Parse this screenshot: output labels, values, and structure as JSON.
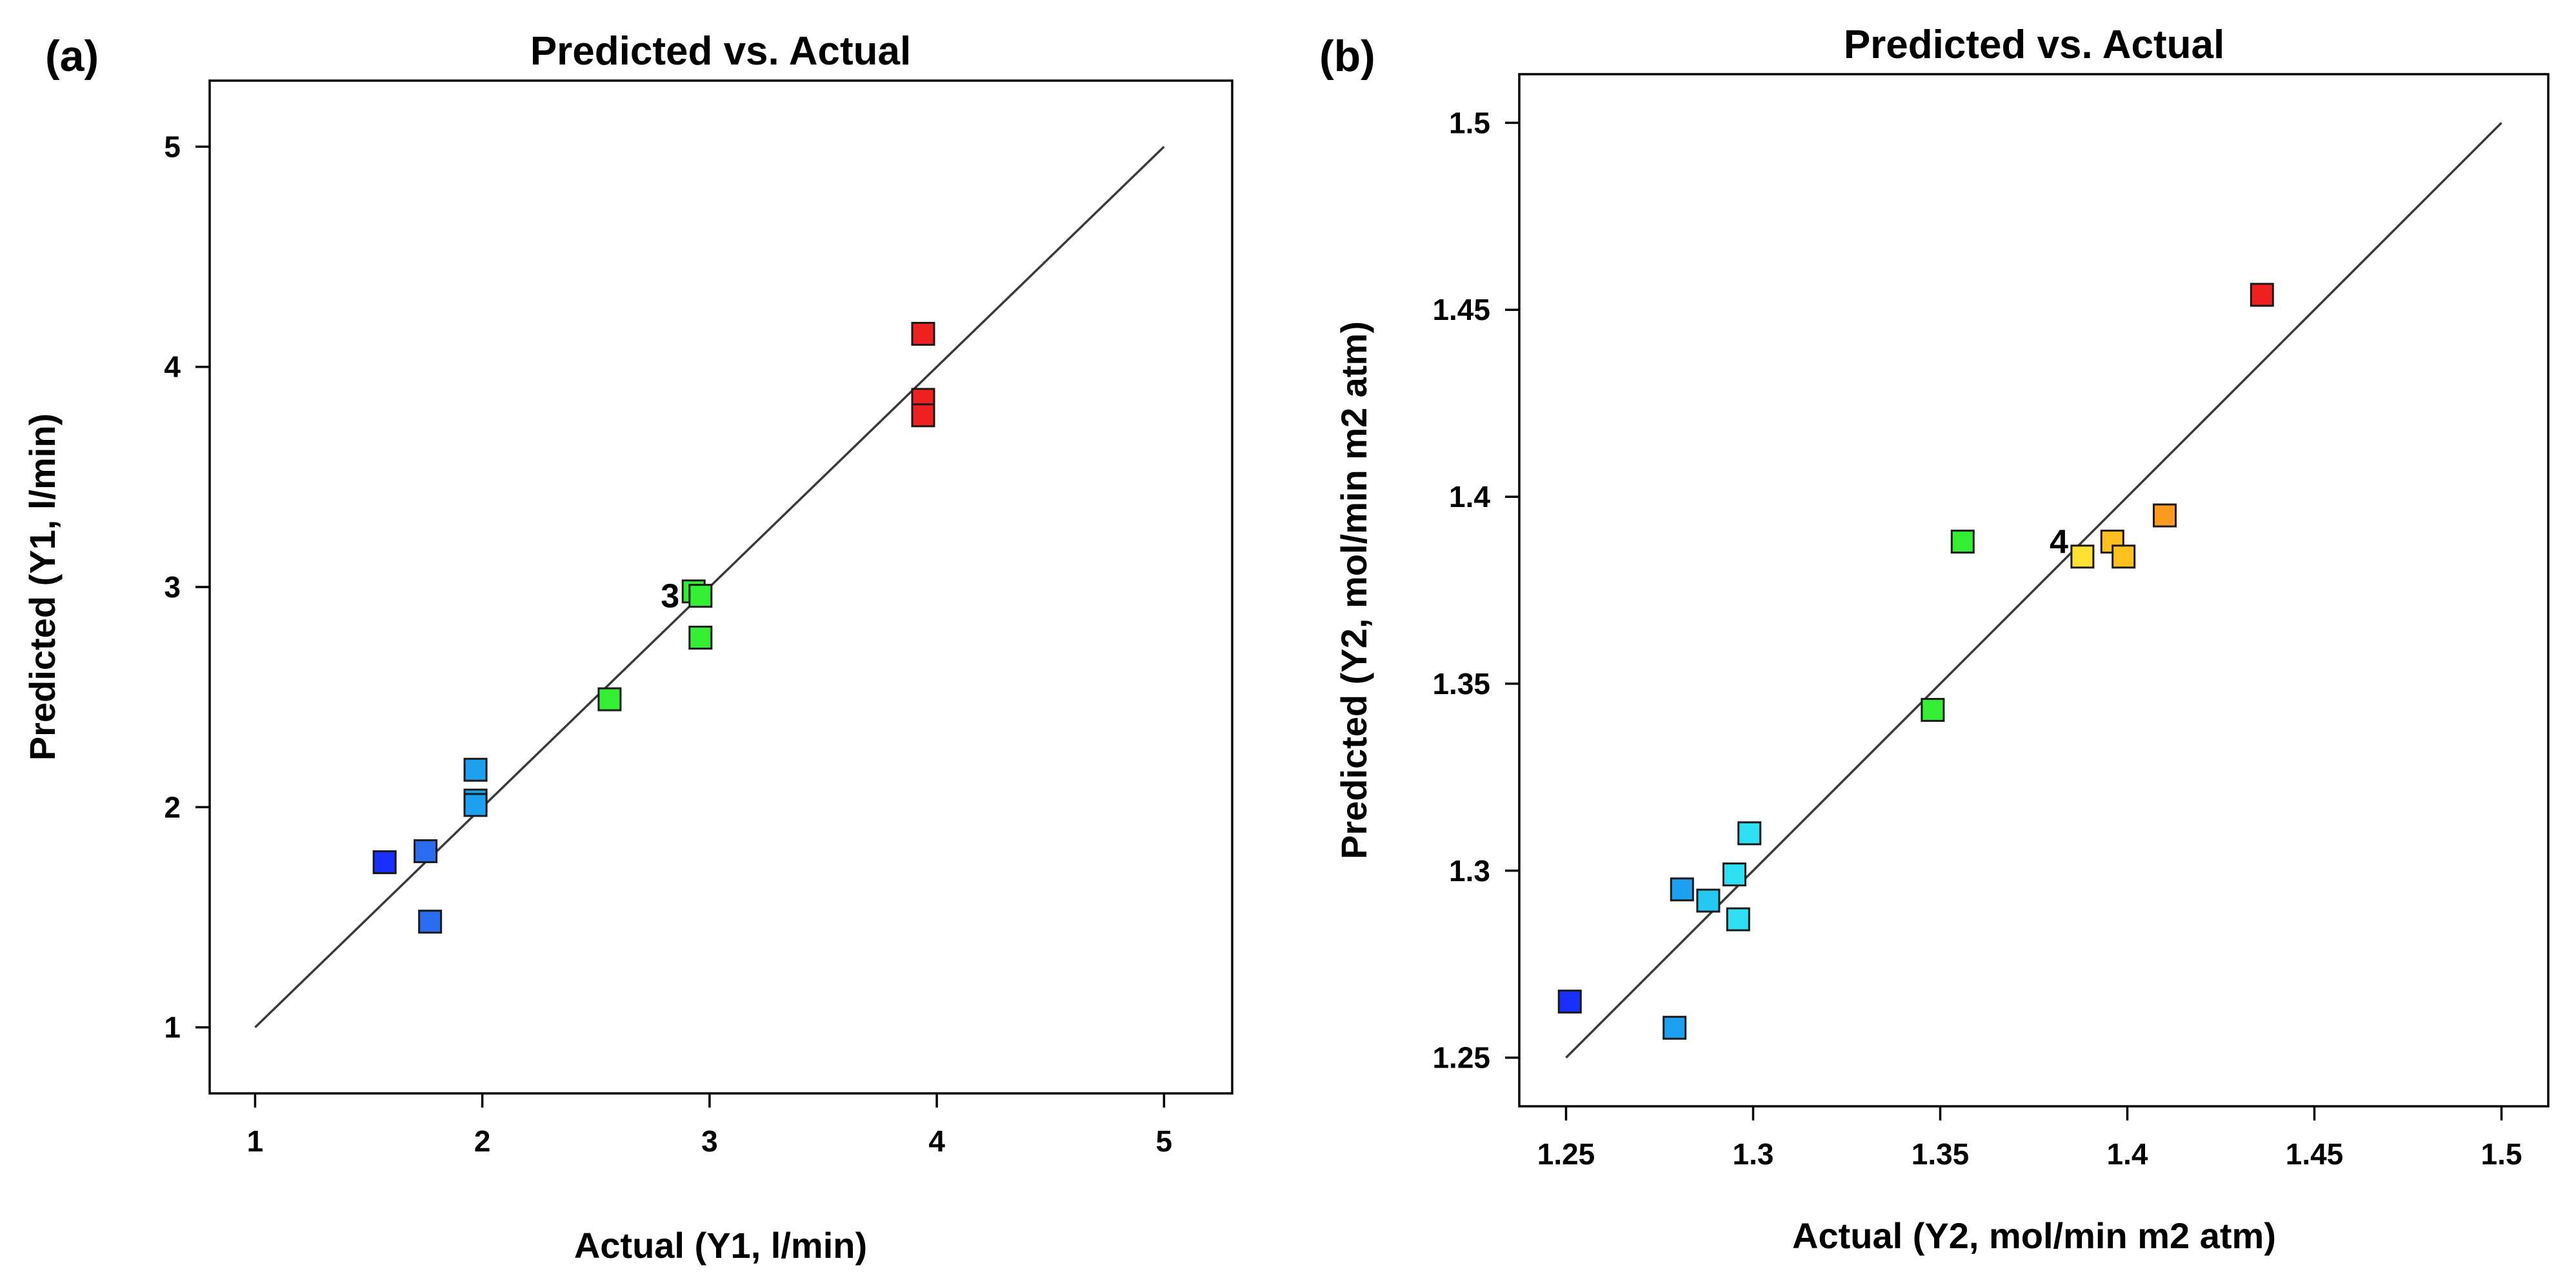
{
  "chart_data": [
    {
      "type": "scatter",
      "panel_label": "(a)",
      "title": "Predicted vs. Actual",
      "xlabel": "Actual (Y1, l/min)",
      "ylabel": "Predicted (Y1, l/min)",
      "xlim": [
        0.8,
        5.3
      ],
      "ylim": [
        0.7,
        5.3
      ],
      "xticks": [
        "1",
        "2",
        "3",
        "4",
        "5"
      ],
      "yticks": [
        "1",
        "2",
        "3",
        "4",
        "5"
      ],
      "line": {
        "x": [
          1,
          5
        ],
        "y": [
          1,
          5
        ]
      },
      "points": [
        {
          "x": 1.57,
          "y": 1.75,
          "color": "#1a2eff"
        },
        {
          "x": 1.75,
          "y": 1.8,
          "color": "#2a6cf0"
        },
        {
          "x": 1.77,
          "y": 1.48,
          "color": "#2a6cf0"
        },
        {
          "x": 1.97,
          "y": 2.17,
          "color": "#1ea0f0"
        },
        {
          "x": 1.97,
          "y": 2.03,
          "color": "#1ea0f0"
        },
        {
          "x": 1.97,
          "y": 2.01,
          "color": "#1ea0f0"
        },
        {
          "x": 2.56,
          "y": 2.49,
          "color": "#33ee33"
        },
        {
          "x": 2.96,
          "y": 2.77,
          "color": "#33ee33"
        },
        {
          "x": 2.93,
          "y": 2.98,
          "color": "#33ee33"
        },
        {
          "x": 2.96,
          "y": 2.96,
          "color": "#33ee33"
        },
        {
          "x": 3.94,
          "y": 4.15,
          "color": "#ee2020"
        },
        {
          "x": 3.94,
          "y": 3.85,
          "color": "#ee2020"
        },
        {
          "x": 3.94,
          "y": 3.78,
          "color": "#ee2020"
        }
      ],
      "annotation": {
        "text": "3",
        "x": 2.93,
        "y": 2.96
      }
    },
    {
      "type": "scatter",
      "panel_label": "(b)",
      "title": "Predicted vs. Actual",
      "xlabel": "Actual  (Y2, mol/min m2 atm)",
      "ylabel": "Predicted (Y2, mol/min m2 atm)",
      "xlim": [
        1.2375,
        1.5125
      ],
      "ylim": [
        1.237,
        1.513
      ],
      "xticks": [
        "1.25",
        "1.3",
        "1.35",
        "1.4",
        "1.45",
        "1.5"
      ],
      "yticks": [
        "1.25",
        "1.3",
        "1.35",
        "1.4",
        "1.45",
        "1.5"
      ],
      "line": {
        "x": [
          1.25,
          1.5
        ],
        "y": [
          1.25,
          1.5
        ]
      },
      "points": [
        {
          "x": 1.251,
          "y": 1.265,
          "color": "#1a2eff"
        },
        {
          "x": 1.279,
          "y": 1.258,
          "color": "#1ea0f0"
        },
        {
          "x": 1.281,
          "y": 1.295,
          "color": "#1ea0f0"
        },
        {
          "x": 1.288,
          "y": 1.292,
          "color": "#24c8f0"
        },
        {
          "x": 1.295,
          "y": 1.299,
          "color": "#2ee0f2"
        },
        {
          "x": 1.296,
          "y": 1.287,
          "color": "#2ee0f2"
        },
        {
          "x": 1.299,
          "y": 1.31,
          "color": "#2ee0f2"
        },
        {
          "x": 1.348,
          "y": 1.343,
          "color": "#33ee33"
        },
        {
          "x": 1.356,
          "y": 1.388,
          "color": "#33ee33"
        },
        {
          "x": 1.388,
          "y": 1.384,
          "color": "#ffe033"
        },
        {
          "x": 1.396,
          "y": 1.388,
          "color": "#ffc020"
        },
        {
          "x": 1.399,
          "y": 1.384,
          "color": "#ffc020"
        },
        {
          "x": 1.41,
          "y": 1.395,
          "color": "#ff9a20"
        },
        {
          "x": 1.436,
          "y": 1.454,
          "color": "#ee2020"
        }
      ],
      "annotation": {
        "text": "4",
        "x": 1.388,
        "y": 1.388
      }
    }
  ]
}
